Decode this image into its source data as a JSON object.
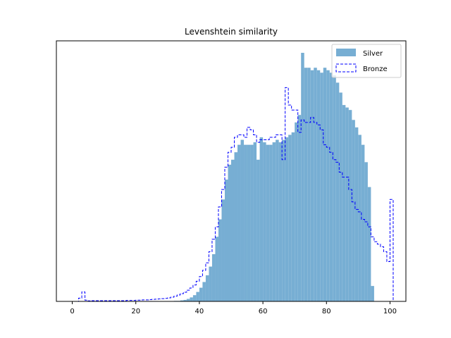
{
  "chart_data": {
    "type": "histogram",
    "title": "Levenshtein similarity",
    "xlabel": "",
    "ylabel": "",
    "xlim": [
      -5,
      105
    ],
    "ylim": [
      0,
      1.0
    ],
    "y_ticks_shown": false,
    "x_ticks": [
      0,
      20,
      40,
      60,
      80,
      100
    ],
    "x_tick_labels": [
      "0",
      "20",
      "40",
      "60",
      "80",
      "100"
    ],
    "grid": false,
    "legend_position": "top-right",
    "bin_width": 1,
    "series": [
      {
        "name": "Silver",
        "style": "filled",
        "color": "#77aed3",
        "start": 32,
        "values": [
          0.002,
          0.002,
          0.004,
          0.006,
          0.01,
          0.016,
          0.025,
          0.038,
          0.055,
          0.078,
          0.105,
          0.14,
          0.19,
          0.26,
          0.33,
          0.41,
          0.49,
          0.55,
          0.57,
          0.6,
          0.63,
          0.65,
          0.63,
          0.63,
          0.63,
          0.64,
          0.57,
          0.66,
          0.64,
          0.63,
          0.63,
          0.64,
          0.65,
          0.64,
          0.65,
          0.66,
          0.67,
          0.68,
          0.72,
          0.75,
          1.0,
          0.94,
          0.94,
          0.93,
          0.94,
          0.93,
          0.92,
          0.94,
          0.93,
          0.92,
          0.91,
          0.88,
          0.84,
          0.79,
          0.78,
          0.77,
          0.73,
          0.7,
          0.67,
          0.63,
          0.56,
          0.46,
          0.062
        ]
      },
      {
        "name": "Bronze",
        "style": "step",
        "color": "#0000ff",
        "start": 0,
        "values": [
          0.0,
          0.0,
          0.013,
          0.038,
          0.005,
          0.002,
          0.003,
          0.003,
          0.003,
          0.003,
          0.003,
          0.003,
          0.003,
          0.003,
          0.003,
          0.003,
          0.003,
          0.004,
          0.004,
          0.004,
          0.005,
          0.005,
          0.006,
          0.006,
          0.007,
          0.008,
          0.009,
          0.01,
          0.011,
          0.012,
          0.014,
          0.017,
          0.021,
          0.026,
          0.031,
          0.037,
          0.045,
          0.054,
          0.066,
          0.081,
          0.1,
          0.125,
          0.155,
          0.2,
          0.25,
          0.3,
          0.38,
          0.45,
          0.54,
          0.6,
          0.62,
          0.66,
          0.67,
          0.67,
          0.66,
          0.7,
          0.69,
          0.67,
          0.64,
          0.65,
          0.65,
          0.65,
          0.66,
          0.66,
          0.67,
          0.67,
          0.57,
          0.86,
          0.79,
          0.77,
          0.77,
          0.68,
          0.73,
          0.72,
          0.72,
          0.74,
          0.72,
          0.71,
          0.69,
          0.63,
          0.62,
          0.6,
          0.57,
          0.56,
          0.52,
          0.5,
          0.5,
          0.45,
          0.4,
          0.37,
          0.36,
          0.33,
          0.32,
          0.3,
          0.26,
          0.24,
          0.23,
          0.22,
          0.2,
          0.16,
          0.41
        ]
      }
    ]
  }
}
